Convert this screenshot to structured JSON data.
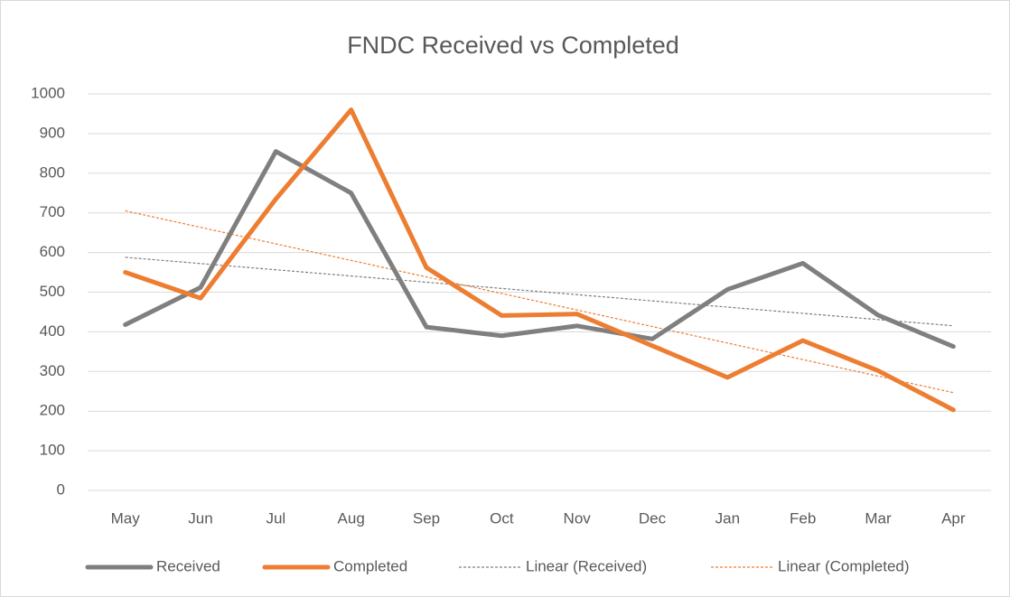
{
  "chart_data": {
    "type": "line",
    "title": "FNDC Received vs Completed",
    "categories": [
      "May",
      "Jun",
      "Jul",
      "Aug",
      "Sep",
      "Oct",
      "Nov",
      "Dec",
      "Jan",
      "Feb",
      "Mar",
      "Apr"
    ],
    "series": [
      {
        "name": "Received",
        "color": "#7f7f7f",
        "values": [
          418,
          512,
          855,
          750,
          412,
          390,
          415,
          382,
          507,
          573,
          442,
          363
        ]
      },
      {
        "name": "Completed",
        "color": "#ed7d31",
        "values": [
          550,
          485,
          735,
          960,
          562,
          441,
          445,
          365,
          285,
          378,
          302,
          203
        ]
      }
    ],
    "trendlines": [
      {
        "name": "Linear (Received)",
        "series": 0,
        "fit": "linear",
        "color": "#7f7f7f"
      },
      {
        "name": "Linear (Completed)",
        "series": 1,
        "fit": "linear",
        "color": "#ed7d31"
      }
    ],
    "ylim": [
      0,
      1000
    ],
    "yticks": [
      0,
      100,
      200,
      300,
      400,
      500,
      600,
      700,
      800,
      900,
      1000
    ],
    "grid": true,
    "legend": "bottom"
  }
}
